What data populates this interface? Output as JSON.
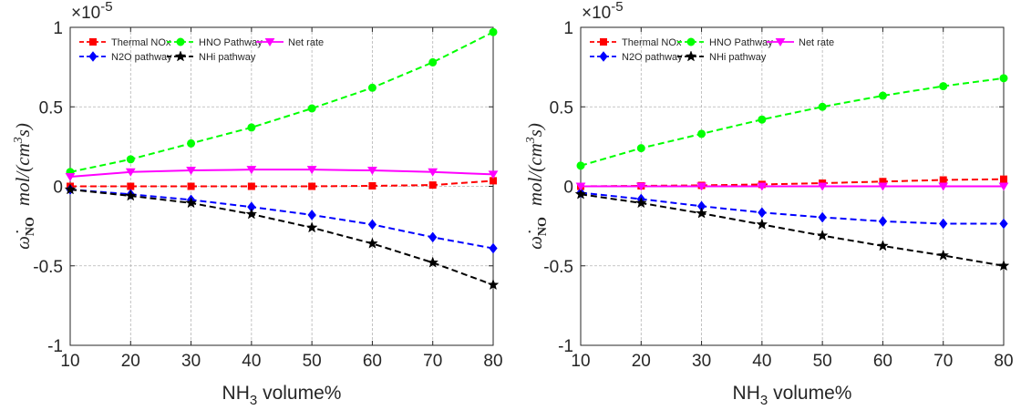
{
  "chart_data": [
    {
      "type": "line",
      "title": "",
      "xlabel_main": "NH",
      "xlabel_sub": "3",
      "xlabel_rest": " volume%",
      "ylabel_symbol": "ω̇",
      "ylabel_subscript": "NO",
      "ylabel_unit": "mol/(cm",
      "ylabel_unit_sup": "3",
      "ylabel_unit_end": "s)",
      "exponent_base": "×10",
      "exponent_power": "-5",
      "xlim": [
        10,
        80
      ],
      "ylim": [
        -1,
        1
      ],
      "xticks": [
        10,
        20,
        30,
        40,
        50,
        60,
        70,
        80
      ],
      "yticks": [
        -1,
        -0.5,
        0,
        0.5,
        1
      ],
      "ytick_labels": [
        "-1",
        "-0.5",
        "0",
        "0.5",
        "1"
      ],
      "grid": true,
      "x": [
        10,
        20,
        30,
        40,
        50,
        60,
        70,
        80
      ],
      "series": [
        {
          "name": "Thermal NOx",
          "color": "#ff0000",
          "marker": "square",
          "dash": true,
          "values": [
            0.0,
            0.0,
            0.0,
            0.0,
            0.0,
            0.003,
            0.008,
            0.035
          ]
        },
        {
          "name": "HNO Pathway",
          "color": "#00ff00",
          "marker": "circle",
          "dash": true,
          "values": [
            0.09,
            0.17,
            0.27,
            0.37,
            0.49,
            0.62,
            0.78,
            0.97
          ]
        },
        {
          "name": "Net rate",
          "color": "#ff00ff",
          "marker": "triangle-down",
          "dash": false,
          "values": [
            0.06,
            0.09,
            0.1,
            0.105,
            0.105,
            0.1,
            0.09,
            0.075
          ]
        },
        {
          "name": "N2O pathway",
          "color": "#0000ff",
          "marker": "diamond",
          "dash": true,
          "values": [
            -0.02,
            -0.05,
            -0.085,
            -0.13,
            -0.18,
            -0.24,
            -0.32,
            -0.39
          ]
        },
        {
          "name": "NHi pathway",
          "color": "#000000",
          "marker": "star",
          "dash": true,
          "values": [
            -0.02,
            -0.06,
            -0.105,
            -0.175,
            -0.26,
            -0.36,
            -0.48,
            -0.62
          ]
        }
      ],
      "legend": "top-left"
    },
    {
      "type": "line",
      "title": "",
      "xlabel_main": "NH",
      "xlabel_sub": "3",
      "xlabel_rest": " volume%",
      "ylabel_symbol": "ω̇",
      "ylabel_subscript": "NO",
      "ylabel_unit": "mol/(cm",
      "ylabel_unit_sup": "3",
      "ylabel_unit_end": "s)",
      "exponent_base": "×10",
      "exponent_power": "-5",
      "xlim": [
        10,
        80
      ],
      "ylim": [
        -1,
        1
      ],
      "xticks": [
        10,
        20,
        30,
        40,
        50,
        60,
        70,
        80
      ],
      "yticks": [
        -1,
        -0.5,
        0,
        0.5,
        1
      ],
      "ytick_labels": [
        "-1",
        "-0.5",
        "0",
        "0.5",
        "1"
      ],
      "grid": true,
      "x": [
        10,
        20,
        30,
        40,
        50,
        60,
        70,
        80
      ],
      "series": [
        {
          "name": "Thermal NOx",
          "color": "#ff0000",
          "marker": "square",
          "dash": true,
          "values": [
            0.0,
            0.003,
            0.006,
            0.012,
            0.02,
            0.03,
            0.04,
            0.045
          ]
        },
        {
          "name": "HNO Pathway",
          "color": "#00ff00",
          "marker": "circle",
          "dash": true,
          "values": [
            0.13,
            0.24,
            0.33,
            0.42,
            0.5,
            0.57,
            0.63,
            0.68
          ]
        },
        {
          "name": "Net rate",
          "color": "#ff00ff",
          "marker": "triangle-down",
          "dash": false,
          "values": [
            0.0,
            0.0,
            0.0,
            0.0,
            0.0,
            0.0,
            0.0,
            0.0
          ]
        },
        {
          "name": "N2O pathway",
          "color": "#0000ff",
          "marker": "diamond",
          "dash": true,
          "values": [
            -0.04,
            -0.08,
            -0.125,
            -0.165,
            -0.195,
            -0.22,
            -0.235,
            -0.235
          ]
        },
        {
          "name": "NHi pathway",
          "color": "#000000",
          "marker": "star",
          "dash": true,
          "values": [
            -0.05,
            -0.105,
            -0.17,
            -0.24,
            -0.31,
            -0.375,
            -0.435,
            -0.5
          ]
        }
      ],
      "legend": "top-left"
    }
  ]
}
